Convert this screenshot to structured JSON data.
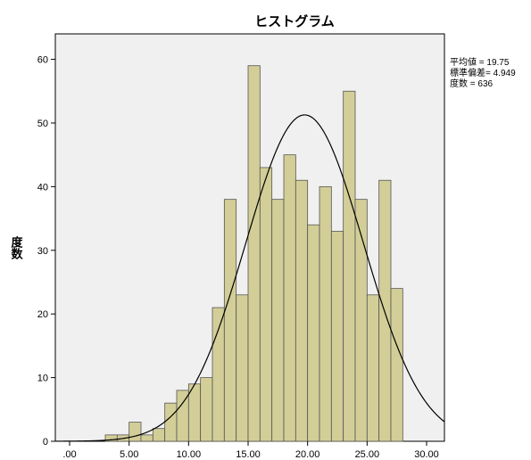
{
  "chart_data": {
    "type": "bar",
    "title": "ヒストグラム",
    "ylabel": "度数",
    "xlabel": "",
    "bin_width": 1,
    "bins_start": [
      3,
      4,
      5,
      6,
      7,
      8,
      9,
      10,
      11,
      12,
      13,
      14,
      15,
      16,
      17,
      18,
      19,
      20,
      21,
      22,
      23,
      24,
      25,
      26,
      27,
      28
    ],
    "values": [
      1,
      1,
      3,
      1,
      2,
      6,
      8,
      9,
      10,
      21,
      38,
      23,
      59,
      43,
      38,
      45,
      41,
      34,
      40,
      33,
      55,
      38,
      23,
      41,
      24,
      0
    ],
    "xlim": [
      -1.2,
      31.5
    ],
    "ylim": [
      0,
      64
    ],
    "x_ticks": [
      ".00",
      "5.00",
      "10.00",
      "15.00",
      "20.00",
      "25.00",
      "30.00"
    ],
    "x_tick_values": [
      0,
      5,
      10,
      15,
      20,
      25,
      30
    ],
    "y_ticks": [
      "0",
      "10",
      "20",
      "30",
      "40",
      "50",
      "60"
    ],
    "y_tick_values": [
      0,
      10,
      20,
      30,
      40,
      50,
      60
    ],
    "grid": false,
    "normal_curve": {
      "mean": 19.75,
      "sd": 4.949,
      "n": 636
    },
    "stats": {
      "mean_label": "平均値 = 19.75",
      "sd_label": "標準偏差= 4.949",
      "n_label": "度数 = 636"
    },
    "colors": {
      "plot_background": "#f0f0f0",
      "bar_fill": "#d3ce97",
      "bar_stroke": "#555555",
      "curve": "#000000"
    }
  }
}
